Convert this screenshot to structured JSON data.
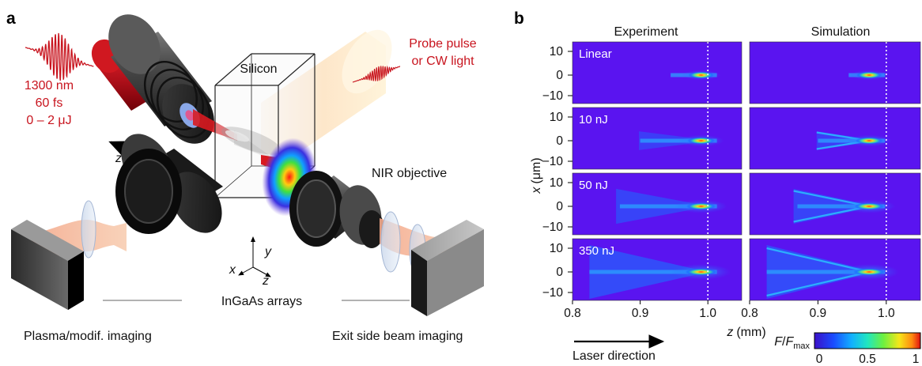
{
  "panel_a": {
    "letter": "a",
    "laser_params": [
      "1300 nm",
      "60 fs",
      "0 – 2 μJ"
    ],
    "probe_label": [
      "Probe pulse",
      "or CW light"
    ],
    "silicon_label": "Silicon",
    "z_stage_label": "z",
    "objective_label": "NIR objective",
    "axes": {
      "x": "x",
      "y": "y",
      "z": "z"
    },
    "arrays_label": "InGaAs arrays",
    "left_camera_label": "Plasma/modif. imaging",
    "right_camera_label": "Exit side beam imaging",
    "laser_direction_label": "Laser direction"
  },
  "panel_b": {
    "letter": "b",
    "columns": [
      "Experiment",
      "Simulation"
    ],
    "rows": [
      {
        "label": "Linear",
        "spread": 0.05,
        "fil": 0.2
      },
      {
        "label": "10 nJ",
        "spread": 0.35,
        "fil": 0.5
      },
      {
        "label": "50 nJ",
        "spread": 0.65,
        "fil": 0.7
      },
      {
        "label": "350 nJ",
        "spread": 1.0,
        "fil": 1.0
      }
    ],
    "y_ticks": [
      "10",
      "0",
      "−10"
    ],
    "y_axis_var": "x",
    "y_axis_unit": "(μm)",
    "x_ticks": [
      "0.8",
      "0.9",
      "1.0"
    ],
    "x_axis_var": "z",
    "x_axis_unit": "(mm)",
    "colorbar": {
      "var_main": "F",
      "var_sub": "max",
      "ticks": [
        "0",
        "0.5",
        "1"
      ]
    },
    "colors": {
      "background": "#5a14f0",
      "focus_line": "#ffffff"
    }
  }
}
